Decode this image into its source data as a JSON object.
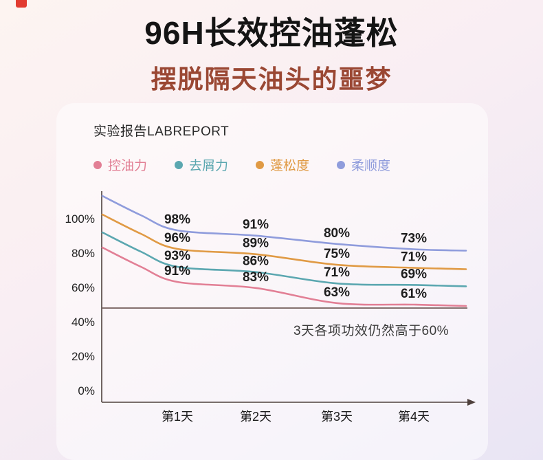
{
  "page": {
    "title": "96H长效控油蓬松",
    "subtitle": "摆脱隔天油头的噩梦",
    "report_label": "实验报告LABREPORT"
  },
  "legend": [
    {
      "label": "控油力",
      "color": "#e27f95"
    },
    {
      "label": "去屑力",
      "color": "#5ba7b0"
    },
    {
      "label": "蓬松度",
      "color": "#e09a44"
    },
    {
      "label": "柔顺度",
      "color": "#8f9cdc"
    }
  ],
  "chart_data": {
    "type": "line",
    "title": "实验报告LABREPORT",
    "xlabel": "",
    "ylabel": "",
    "categories": [
      "第1天",
      "第2天",
      "第3天",
      "第4天"
    ],
    "series": [
      {
        "name": "柔顺度",
        "color": "#8f9cdc",
        "values": [
          98,
          91,
          80,
          73
        ]
      },
      {
        "name": "蓬松度",
        "color": "#e09a44",
        "values": [
          96,
          89,
          75,
          71
        ]
      },
      {
        "name": "去屑力",
        "color": "#5ba7b0",
        "values": [
          93,
          86,
          71,
          69
        ]
      },
      {
        "name": "控油力",
        "color": "#e27f95",
        "values": [
          91,
          83,
          63,
          61
        ]
      }
    ],
    "y_ticks": [
      "100%",
      "80%",
      "60%",
      "40%",
      "20%",
      "0%"
    ],
    "y_tick_values": [
      100,
      80,
      60,
      40,
      20,
      0
    ],
    "ylim": [
      0,
      115
    ],
    "grid": false,
    "legend_position": "top",
    "annotation": "3天各项功效仍然高于60%",
    "colors": {
      "axis": "#4e403c",
      "reference_line": "#5d4440",
      "label_text": "#1d1d1d"
    }
  }
}
